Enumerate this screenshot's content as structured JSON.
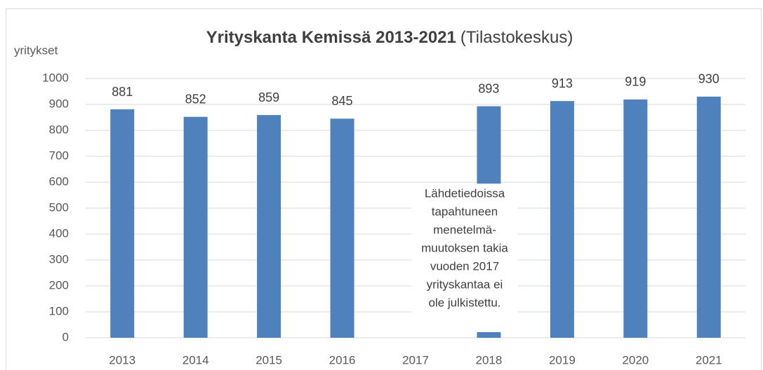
{
  "chart_data": {
    "type": "bar",
    "title": "Yrityskanta Kemissä 2013-2021",
    "subtitle": "(Tilastokeskus)",
    "y_label": "yritykset",
    "categories": [
      "2013",
      "2014",
      "2015",
      "2016",
      "2017",
      "2018",
      "2019",
      "2020",
      "2021"
    ],
    "values": [
      881,
      852,
      859,
      845,
      null,
      893,
      913,
      919,
      930
    ],
    "color": "#4f81bd",
    "ylim": [
      0,
      1000
    ],
    "yticks": [
      0,
      100,
      200,
      300,
      400,
      500,
      600,
      700,
      800,
      900,
      1000
    ],
    "grid": true,
    "annotation": [
      "Lähdetiedoissa",
      "tapahtuneen",
      "menetelmä-",
      "muutoksen takia",
      "vuoden 2017",
      "yrityskantaa ei",
      "ole julkistettu."
    ]
  }
}
